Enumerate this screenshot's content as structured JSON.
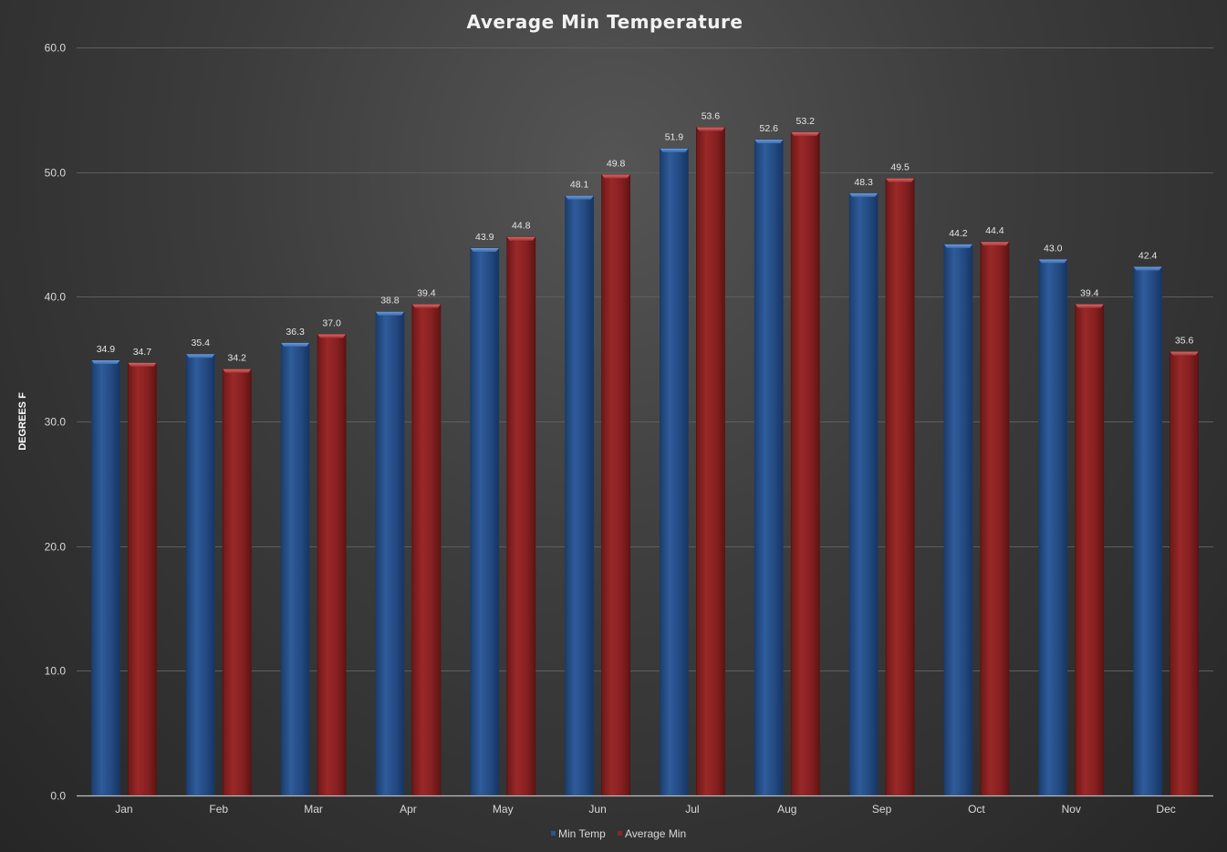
{
  "chart_data": {
    "type": "bar",
    "title": "Average Min Temperature",
    "xlabel": "",
    "ylabel": "DEGREES F",
    "ylim": [
      0,
      60
    ],
    "yticks": [
      "0.0",
      "10.0",
      "20.0",
      "30.0",
      "40.0",
      "50.0",
      "60.0"
    ],
    "grid": true,
    "legend_position": "bottom",
    "categories": [
      "Jan",
      "Feb",
      "Mar",
      "Apr",
      "May",
      "Jun",
      "Jul",
      "Aug",
      "Sep",
      "Oct",
      "Nov",
      "Dec"
    ],
    "series": [
      {
        "name": "Min Temp",
        "color": "#2a5592",
        "values": [
          34.9,
          35.4,
          36.3,
          38.8,
          43.9,
          48.1,
          51.9,
          52.6,
          48.3,
          44.2,
          43.0,
          42.4
        ],
        "labels": [
          "34.9",
          "35.4",
          "36.3",
          "38.8",
          "43.9",
          "48.1",
          "51.9",
          "52.6",
          "48.3",
          "44.2",
          "43.0",
          "42.4"
        ]
      },
      {
        "name": "Average Min",
        "color": "#8e2424",
        "values": [
          34.7,
          34.2,
          37.0,
          39.4,
          44.8,
          49.8,
          53.6,
          53.2,
          49.5,
          44.4,
          39.4,
          35.6
        ],
        "labels": [
          "34.7",
          "34.2",
          "37.0",
          "39.4",
          "44.8",
          "49.8",
          "53.6",
          "53.2",
          "49.5",
          "44.4",
          "39.4",
          "35.6"
        ]
      }
    ]
  }
}
